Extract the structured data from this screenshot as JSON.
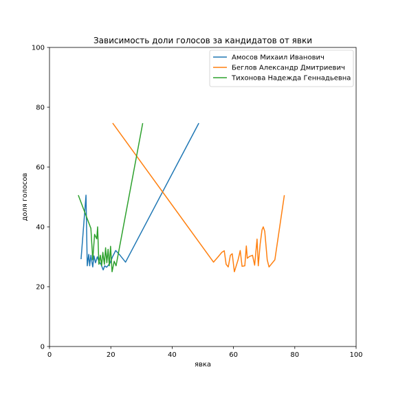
{
  "chart_data": {
    "type": "line",
    "title": "Зависимость доли голосов за кандидатов от явки",
    "xlabel": "явка",
    "ylabel": "доля голосов",
    "xlim": [
      0,
      100
    ],
    "ylim": [
      0,
      100
    ],
    "xticks": [
      0,
      20,
      40,
      60,
      80,
      100
    ],
    "yticks": [
      0,
      20,
      40,
      60,
      80,
      100
    ],
    "grid": false,
    "legend_position": "top-right",
    "series": [
      {
        "name": "Амосов Михаил Иванович",
        "color": "#1f77b4",
        "points": [
          [
            10.3,
            29.2
          ],
          [
            11.9,
            50.6
          ],
          [
            12.3,
            27.0
          ],
          [
            12.8,
            30.8
          ],
          [
            13.1,
            27.0
          ],
          [
            13.5,
            30.5
          ],
          [
            14.1,
            26.6
          ],
          [
            14.5,
            30.3
          ],
          [
            15.0,
            28.0
          ],
          [
            15.6,
            30.0
          ],
          [
            16.2,
            28.2
          ],
          [
            16.8,
            27.5
          ],
          [
            17.5,
            25.6
          ],
          [
            18.0,
            27.0
          ],
          [
            18.6,
            26.5
          ],
          [
            19.2,
            27.2
          ],
          [
            19.8,
            28.0
          ],
          [
            20.6,
            30.1
          ],
          [
            21.6,
            32.1
          ],
          [
            23.0,
            30.5
          ],
          [
            24.8,
            28.2
          ],
          [
            48.7,
            74.7
          ]
        ]
      },
      {
        "name": "Беглов Александр Дмитриевич",
        "color": "#ff7f0e",
        "points": [
          [
            20.6,
            74.7
          ],
          [
            53.5,
            28.2
          ],
          [
            55.0,
            30.0
          ],
          [
            56.2,
            31.5
          ],
          [
            57.0,
            32.0
          ],
          [
            57.6,
            27.5
          ],
          [
            58.3,
            26.6
          ],
          [
            59.0,
            30.5
          ],
          [
            59.6,
            31.0
          ],
          [
            60.3,
            25.0
          ],
          [
            61.5,
            29.0
          ],
          [
            62.2,
            32.1
          ],
          [
            62.8,
            26.8
          ],
          [
            63.7,
            27.0
          ],
          [
            64.2,
            33.6
          ],
          [
            64.5,
            29.5
          ],
          [
            65.2,
            30.1
          ],
          [
            66.2,
            30.5
          ],
          [
            66.9,
            27.2
          ],
          [
            67.7,
            35.9
          ],
          [
            68.1,
            27.0
          ],
          [
            68.7,
            34.2
          ],
          [
            69.3,
            39.0
          ],
          [
            69.7,
            40.0
          ],
          [
            70.2,
            38.5
          ],
          [
            71.0,
            29.0
          ],
          [
            71.6,
            26.6
          ],
          [
            73.5,
            29.0
          ],
          [
            76.6,
            50.6
          ]
        ]
      },
      {
        "name": "Тихонова Надежда Геннадьевна",
        "color": "#2ca02c",
        "points": [
          [
            9.4,
            50.6
          ],
          [
            13.5,
            39.5
          ],
          [
            14.1,
            29.0
          ],
          [
            14.7,
            37.5
          ],
          [
            15.4,
            36.0
          ],
          [
            15.7,
            40.0
          ],
          [
            16.1,
            27.5
          ],
          [
            16.6,
            30.5
          ],
          [
            17.0,
            27.0
          ],
          [
            17.4,
            31.5
          ],
          [
            17.9,
            27.5
          ],
          [
            18.3,
            33.0
          ],
          [
            18.7,
            28.0
          ],
          [
            19.1,
            32.5
          ],
          [
            19.5,
            27.0
          ],
          [
            19.9,
            33.5
          ],
          [
            20.4,
            25.0
          ],
          [
            21.1,
            28.5
          ],
          [
            21.7,
            27.0
          ],
          [
            30.4,
            74.7
          ]
        ]
      }
    ]
  }
}
